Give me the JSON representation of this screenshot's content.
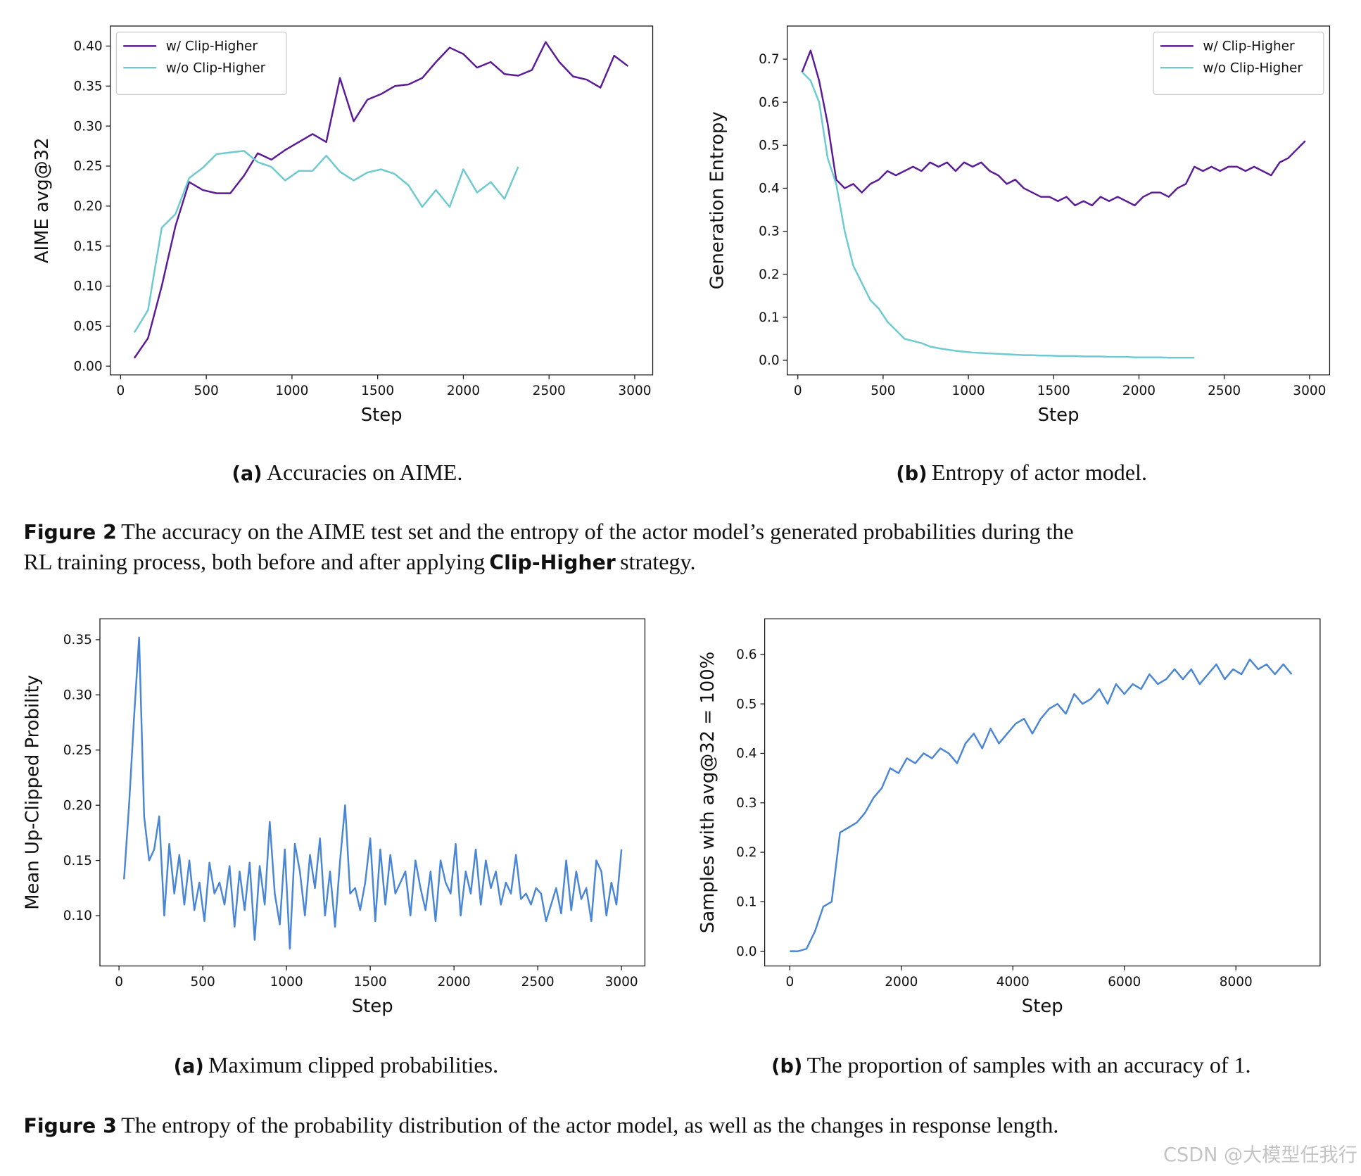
{
  "chart_data": [
    {
      "type": "line",
      "xlabel": "Step",
      "ylabel": "AIME avg@32",
      "legend": "upper left",
      "x": [
        80,
        160,
        240,
        320,
        400,
        480,
        560,
        640,
        720,
        800,
        880,
        960,
        1040,
        1120,
        1200,
        1280,
        1360,
        1440,
        1520,
        1600,
        1680,
        1760,
        1840,
        1920,
        2000,
        2080,
        2160,
        2240,
        2320,
        2400,
        2480,
        2560,
        2640,
        2720,
        2800,
        2880,
        2960
      ],
      "series": [
        {
          "name": "w/ Clip-Higher",
          "color": "#5b1a96",
          "values": [
            0.01,
            0.035,
            0.1,
            0.175,
            0.23,
            0.22,
            0.216,
            0.216,
            0.238,
            0.266,
            0.258,
            0.27,
            0.28,
            0.29,
            0.28,
            0.36,
            0.306,
            0.333,
            0.34,
            0.35,
            0.352,
            0.36,
            0.38,
            0.398,
            0.39,
            0.373,
            0.38,
            0.365,
            0.363,
            0.37,
            0.405,
            0.38,
            0.362,
            0.358,
            0.348,
            0.388,
            0.375
          ]
        },
        {
          "name": "w/o Clip-Higher",
          "color": "#6ccad0",
          "values": [
            0.042,
            0.07,
            0.173,
            0.19,
            0.235,
            0.248,
            0.265,
            0.267,
            0.269,
            0.255,
            0.249,
            0.232,
            0.244,
            0.244,
            0.263,
            0.243,
            0.232,
            0.242,
            0.246,
            0.24,
            0.226,
            0.199,
            0.22,
            0.199,
            0.246,
            0.217,
            0.23,
            0.209,
            0.249,
            null,
            null,
            null,
            null,
            null,
            null,
            null,
            null
          ]
        }
      ],
      "xlim": [
        -60,
        3105
      ],
      "xticks": [
        0,
        500,
        1000,
        1500,
        2000,
        2500,
        3000
      ],
      "ylim": [
        -0.011,
        0.425
      ],
      "yticks": [
        {
          "value": 0,
          "label": "0.00"
        },
        0.05,
        {
          "value": 0.1,
          "label": "0.10"
        },
        0.15,
        {
          "value": 0.2,
          "label": "0.20"
        },
        0.25,
        {
          "value": 0.3,
          "label": "0.30"
        },
        0.35,
        {
          "value": 0.4,
          "label": "0.40"
        }
      ]
    },
    {
      "type": "line",
      "xlabel": "Step",
      "ylabel": "Generation Entropy",
      "legend": "upper right",
      "x": [
        25,
        75,
        125,
        175,
        225,
        275,
        325,
        375,
        425,
        475,
        525,
        575,
        625,
        675,
        725,
        775,
        825,
        875,
        925,
        975,
        1025,
        1075,
        1125,
        1175,
        1225,
        1275,
        1325,
        1375,
        1425,
        1475,
        1525,
        1575,
        1625,
        1675,
        1725,
        1775,
        1825,
        1875,
        1925,
        1975,
        2025,
        2075,
        2125,
        2175,
        2225,
        2275,
        2325,
        2375,
        2425,
        2475,
        2525,
        2575,
        2625,
        2675,
        2725,
        2775,
        2825,
        2875,
        2925,
        2975
      ],
      "series": [
        {
          "name": "w/ Clip-Higher",
          "color": "#5b1a96",
          "values": [
            0.67,
            0.72,
            0.65,
            0.55,
            0.42,
            0.4,
            0.41,
            0.39,
            0.41,
            0.42,
            0.44,
            0.43,
            0.44,
            0.45,
            0.44,
            0.46,
            0.45,
            0.46,
            0.44,
            0.46,
            0.45,
            0.46,
            0.44,
            0.43,
            0.41,
            0.42,
            0.4,
            0.39,
            0.38,
            0.38,
            0.37,
            0.38,
            0.36,
            0.37,
            0.36,
            0.38,
            0.37,
            0.38,
            0.37,
            0.36,
            0.38,
            0.39,
            0.39,
            0.38,
            0.4,
            0.41,
            0.45,
            0.44,
            0.45,
            0.44,
            0.45,
            0.45,
            0.44,
            0.45,
            0.44,
            0.43,
            0.46,
            0.47,
            0.49,
            0.51
          ]
        },
        {
          "name": "w/o Clip-Higher",
          "color": "#6ccad0",
          "values": [
            0.67,
            0.65,
            0.6,
            0.47,
            0.41,
            0.3,
            0.22,
            0.18,
            0.14,
            0.12,
            0.09,
            0.07,
            0.05,
            0.045,
            0.04,
            0.032,
            0.028,
            0.025,
            0.022,
            0.02,
            0.018,
            0.017,
            0.016,
            0.015,
            0.014,
            0.013,
            0.012,
            0.012,
            0.011,
            0.011,
            0.01,
            0.01,
            0.01,
            0.009,
            0.009,
            0.009,
            0.008,
            0.008,
            0.008,
            0.007,
            0.007,
            0.007,
            0.007,
            0.006,
            0.006,
            0.006,
            0.006,
            null,
            null,
            null,
            null,
            null,
            null,
            null,
            null,
            null,
            null,
            null,
            null,
            null
          ]
        }
      ],
      "xlim": [
        -62,
        3118
      ],
      "xticks": [
        0,
        500,
        1000,
        1500,
        2000,
        2500,
        3000
      ],
      "ylim": [
        -0.034,
        0.777
      ],
      "yticks": [
        {
          "value": 0,
          "label": "0.0"
        },
        0.1,
        0.2,
        0.3,
        0.4,
        0.5,
        0.6,
        0.7
      ]
    },
    {
      "type": "line",
      "xlabel": "Step",
      "ylabel": "Mean Up-Clipped Probility",
      "x": [
        30,
        60,
        90,
        120,
        150,
        180,
        210,
        240,
        270,
        300,
        330,
        360,
        390,
        420,
        450,
        480,
        510,
        540,
        570,
        600,
        630,
        660,
        690,
        720,
        750,
        780,
        810,
        840,
        870,
        900,
        930,
        960,
        990,
        1020,
        1050,
        1080,
        1110,
        1140,
        1170,
        1200,
        1230,
        1260,
        1290,
        1320,
        1350,
        1380,
        1410,
        1440,
        1470,
        1500,
        1530,
        1560,
        1590,
        1620,
        1650,
        1680,
        1710,
        1740,
        1770,
        1800,
        1830,
        1860,
        1890,
        1920,
        1950,
        1980,
        2010,
        2040,
        2070,
        2100,
        2130,
        2160,
        2190,
        2220,
        2250,
        2280,
        2310,
        2340,
        2370,
        2400,
        2430,
        2460,
        2490,
        2520,
        2550,
        2580,
        2610,
        2640,
        2670,
        2700,
        2730,
        2760,
        2790,
        2820,
        2850,
        2880,
        2910,
        2940,
        2970,
        3000
      ],
      "series": [
        {
          "color": "#4a86d6",
          "values": [
            0.133,
            0.2,
            0.28,
            0.352,
            0.19,
            0.15,
            0.16,
            0.19,
            0.1,
            0.165,
            0.12,
            0.155,
            0.11,
            0.15,
            0.105,
            0.13,
            0.095,
            0.148,
            0.12,
            0.13,
            0.11,
            0.145,
            0.09,
            0.14,
            0.105,
            0.148,
            0.078,
            0.145,
            0.11,
            0.185,
            0.12,
            0.092,
            0.16,
            0.07,
            0.165,
            0.14,
            0.1,
            0.155,
            0.125,
            0.17,
            0.1,
            0.14,
            0.09,
            0.15,
            0.2,
            0.12,
            0.125,
            0.105,
            0.13,
            0.17,
            0.095,
            0.16,
            0.11,
            0.155,
            0.12,
            0.13,
            0.14,
            0.1,
            0.15,
            0.125,
            0.105,
            0.14,
            0.095,
            0.15,
            0.13,
            0.12,
            0.165,
            0.1,
            0.14,
            0.12,
            0.16,
            0.11,
            0.15,
            0.125,
            0.14,
            0.11,
            0.13,
            0.12,
            0.155,
            0.115,
            0.12,
            0.11,
            0.125,
            0.12,
            0.095,
            0.11,
            0.125,
            0.102,
            0.15,
            0.105,
            0.14,
            0.115,
            0.125,
            0.095,
            0.15,
            0.14,
            0.1,
            0.13,
            0.11,
            0.16
          ]
        }
      ],
      "xlim": [
        -114,
        3140
      ],
      "xticks": [
        0,
        500,
        1000,
        1500,
        2000,
        2500,
        3000
      ],
      "ylim": [
        0.0544,
        0.3689
      ],
      "yticks": [
        {
          "value": 0.1,
          "label": "0.10"
        },
        0.15,
        {
          "value": 0.2,
          "label": "0.20"
        },
        0.25,
        {
          "value": 0.3,
          "label": "0.30"
        },
        0.35
      ]
    },
    {
      "type": "line",
      "xlabel": "Step",
      "ylabel": "Samples with avg@32 = 100%",
      "x": [
        0,
        150,
        300,
        450,
        600,
        750,
        900,
        1050,
        1200,
        1350,
        1500,
        1650,
        1800,
        1950,
        2100,
        2250,
        2400,
        2550,
        2700,
        2850,
        3000,
        3150,
        3300,
        3450,
        3600,
        3750,
        3900,
        4050,
        4200,
        4350,
        4500,
        4650,
        4800,
        4950,
        5100,
        5250,
        5400,
        5550,
        5700,
        5850,
        6000,
        6150,
        6300,
        6450,
        6600,
        6750,
        6900,
        7050,
        7200,
        7350,
        7500,
        7650,
        7800,
        7950,
        8100,
        8250,
        8400,
        8550,
        8700,
        8850,
        9000
      ],
      "series": [
        {
          "color": "#4a86d6",
          "values": [
            0,
            0,
            0.005,
            0.04,
            0.09,
            0.1,
            0.24,
            0.25,
            0.26,
            0.28,
            0.31,
            0.33,
            0.37,
            0.36,
            0.39,
            0.38,
            0.4,
            0.39,
            0.41,
            0.4,
            0.38,
            0.42,
            0.44,
            0.41,
            0.45,
            0.42,
            0.44,
            0.46,
            0.47,
            0.44,
            0.47,
            0.49,
            0.5,
            0.48,
            0.52,
            0.5,
            0.51,
            0.53,
            0.5,
            0.54,
            0.52,
            0.54,
            0.53,
            0.56,
            0.54,
            0.55,
            0.57,
            0.55,
            0.57,
            0.54,
            0.56,
            0.58,
            0.55,
            0.57,
            0.56,
            0.59,
            0.57,
            0.58,
            0.56,
            0.58,
            0.56
          ]
        }
      ],
      "xlim": [
        -451,
        9510
      ],
      "xticks": [
        0,
        2000,
        4000,
        6000,
        8000
      ],
      "ylim": [
        -0.0298,
        0.672
      ],
      "yticks": [
        {
          "value": 0,
          "label": "0.0"
        },
        0.1,
        0.2,
        0.3,
        0.4,
        0.5,
        0.6
      ]
    }
  ],
  "captions": [
    {
      "label": "(a)",
      "text": "Accuracies on AIME."
    },
    {
      "label": "(b)",
      "text": "Entropy of actor model."
    },
    {
      "label": "(a)",
      "text": "Maximum clipped probabilities."
    },
    {
      "label": "(b)",
      "text": "The proportion of samples with an accuracy of 1."
    }
  ],
  "figures": [
    {
      "label": "Figure 2",
      "line1": "The accuracy on the AIME test set and the entropy of the actor model’s generated probabilities during the",
      "line2": "RL training process, both before and after applying",
      "emphasis": "Clip-Higher",
      "end": "strategy."
    },
    {
      "label": "Figure 3",
      "text": "The entropy of the probability distribution of the actor model, as well as the changes in response length."
    }
  ],
  "watermark": "CSDN @大模型任我行"
}
